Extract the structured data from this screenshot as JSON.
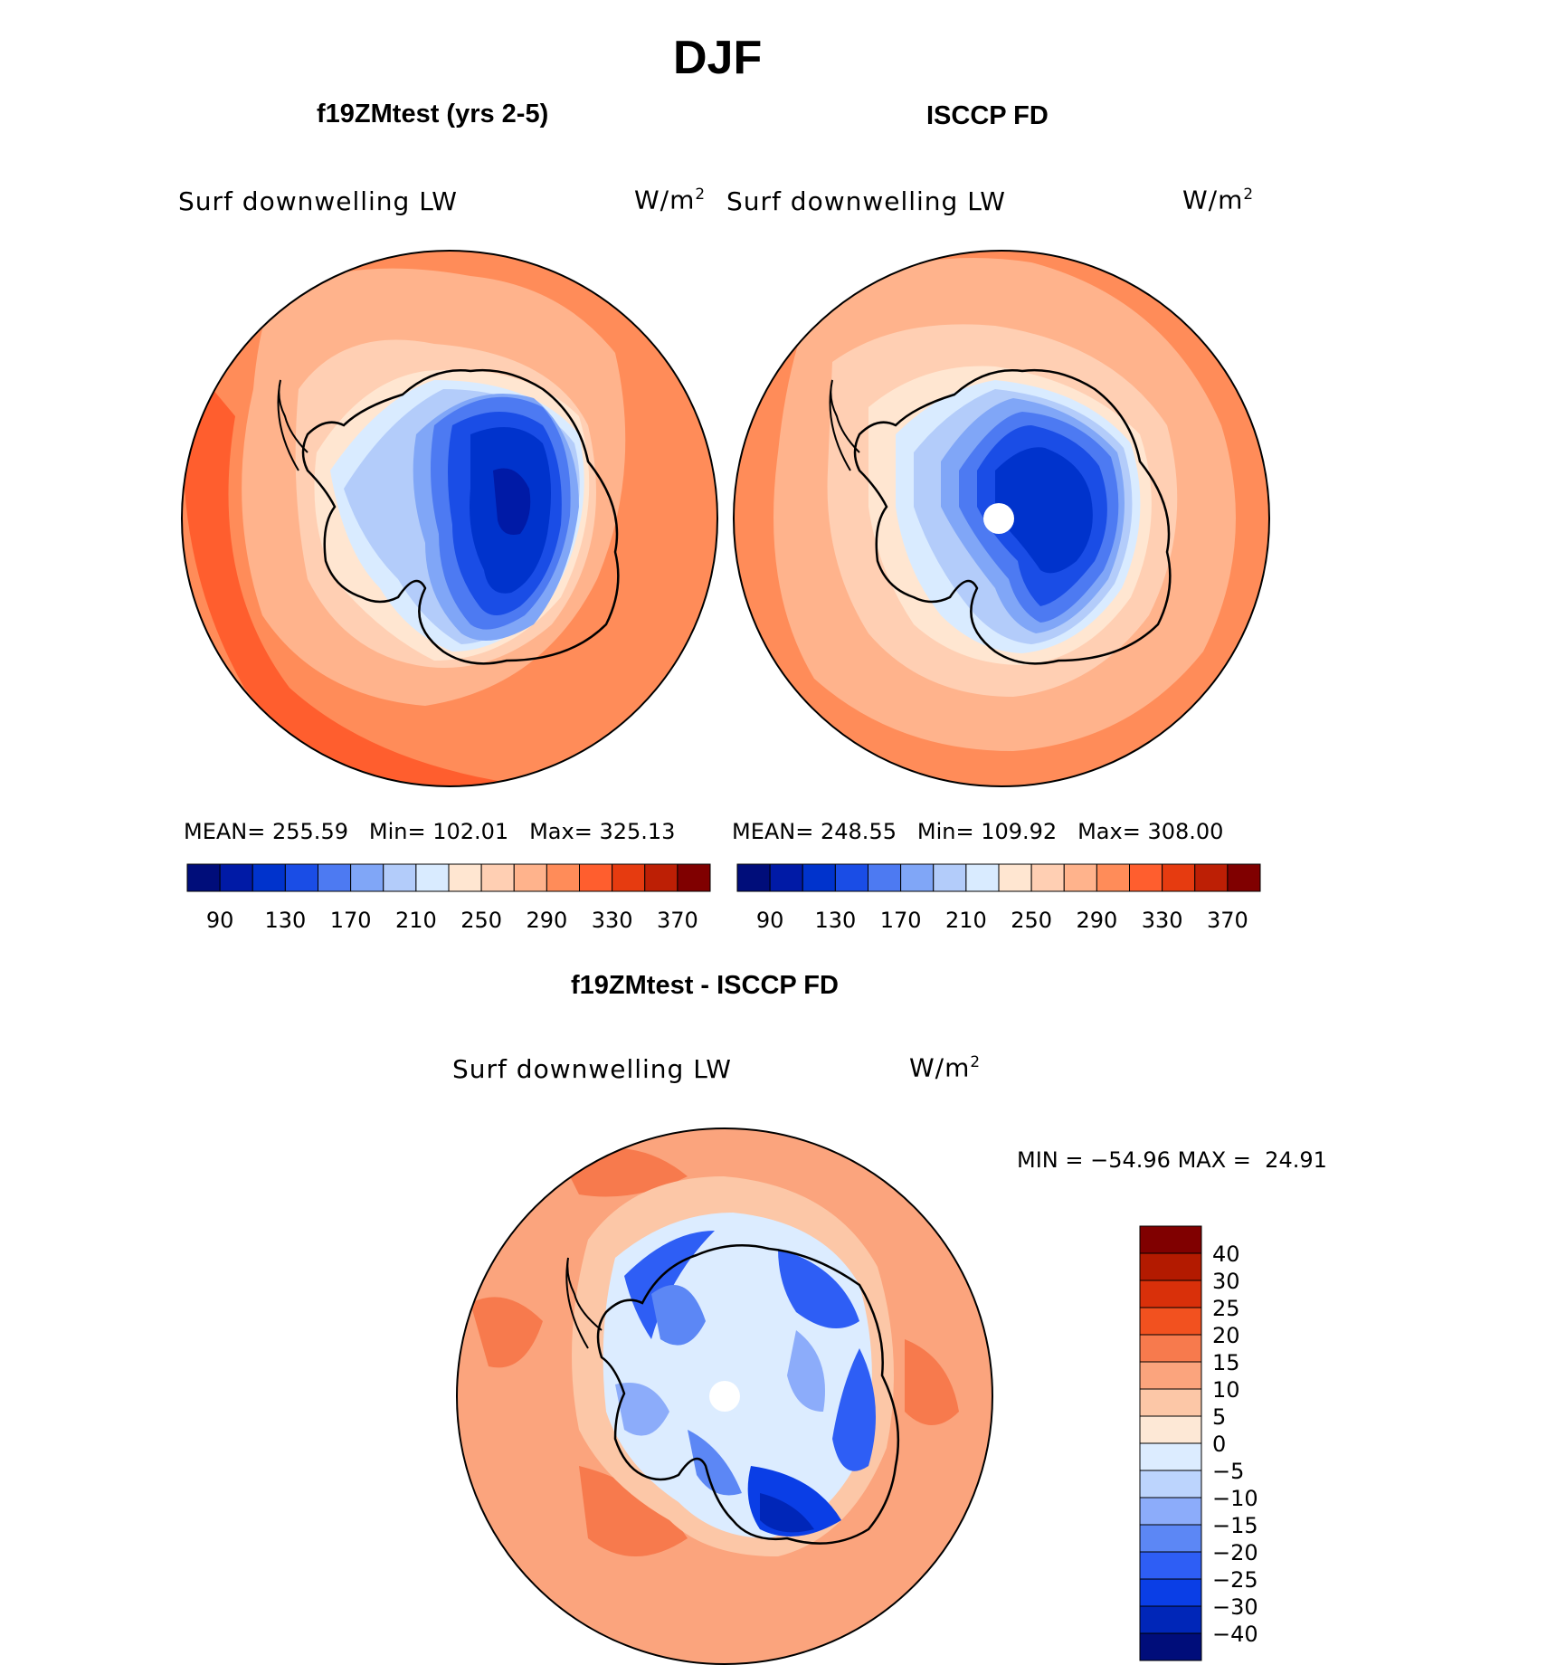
{
  "title": "DJF",
  "panels": [
    {
      "heading": "f19ZMtest (yrs 2-5)",
      "var_label": "Surf downwelling LW",
      "units": "W/m",
      "units_sup": "2",
      "stats": {
        "mean_label": "MEAN=",
        "mean": "255.59",
        "min_label": "Min=",
        "min": "102.01",
        "max_label": "Max=",
        "max": "325.13"
      }
    },
    {
      "heading": "ISCCP FD",
      "var_label": "Surf downwelling LW",
      "units": "W/m",
      "units_sup": "2",
      "stats": {
        "mean_label": "MEAN=",
        "mean": "248.55",
        "min_label": "Min=",
        "min": "109.92",
        "max_label": "Max=",
        "max": "308.00"
      }
    }
  ],
  "diff_panel": {
    "heading": "f19ZMtest - ISCCP FD",
    "var_label": "Surf downwelling LW",
    "units": "W/m",
    "units_sup": "2",
    "minmax": {
      "min_label": "MIN =",
      "min": "−54.96",
      "max_label": "MAX =",
      "max": "24.91"
    }
  },
  "abs_colorbar": {
    "colors": [
      "#000d7a",
      "#001aa6",
      "#0033cc",
      "#1a4de6",
      "#4d7af2",
      "#80a6f7",
      "#b3ccfa",
      "#d9ebff",
      "#ffe6d1",
      "#ffcfb3",
      "#ffb38c",
      "#ff8c59",
      "#ff5e2e",
      "#e63b10",
      "#bd1f05",
      "#800000"
    ],
    "tick_labels": [
      "90",
      "130",
      "170",
      "210",
      "250",
      "290",
      "330",
      "370"
    ]
  },
  "diff_colorbar": {
    "colors": [
      "#000d7a",
      "#0026b8",
      "#0a3ee6",
      "#2e5ef5",
      "#5c87f5",
      "#8cacfa",
      "#bcd4fd",
      "#dcecff",
      "#fde8d6",
      "#fcc7a7",
      "#fba47d",
      "#f77a4d",
      "#f2511f",
      "#d9300a",
      "#b31a00",
      "#800000"
    ],
    "tick_labels": [
      "40",
      "30",
      "25",
      "20",
      "15",
      "10",
      "5",
      "0",
      "−5",
      "−10",
      "−15",
      "−20",
      "−25",
      "−30",
      "−40"
    ]
  }
}
